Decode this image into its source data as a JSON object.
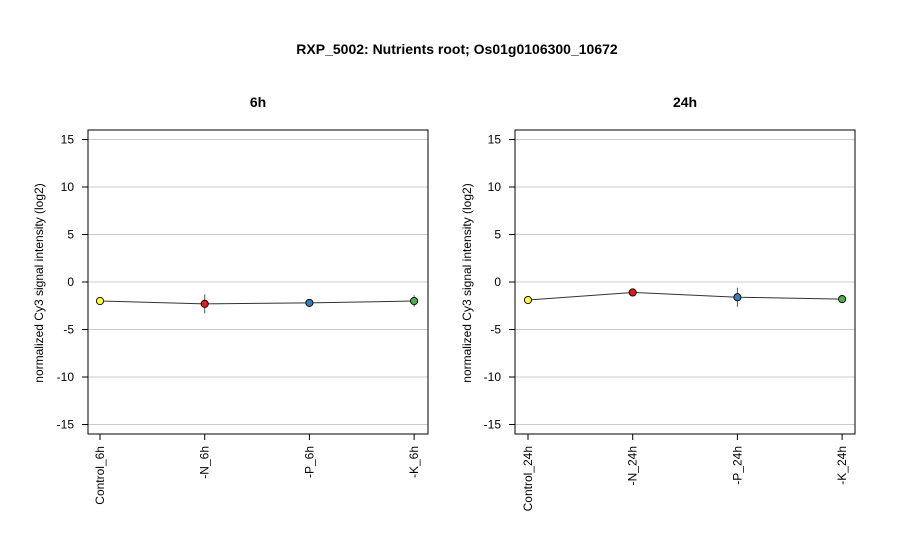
{
  "figure_title": "RXP_5002: Nutrients root; Os01g0106300_10672",
  "colors": {
    "control": "#ffff33",
    "N": "#e41a1c",
    "P": "#377eb8",
    "K": "#4daf4a",
    "line": "#333333",
    "grid": "#cccccc"
  },
  "chart_data": [
    {
      "type": "line",
      "title": "6h",
      "ylabel": "normalized Cy3 signal intensity (log2)",
      "ylim": [
        -16,
        16
      ],
      "yticks": [
        -15,
        -10,
        -5,
        0,
        5,
        10,
        15
      ],
      "grid": true,
      "categories": [
        "Control_6h",
        "-N_6h",
        "-P_6h",
        "-K_6h"
      ],
      "values": [
        -2.0,
        -2.3,
        -2.2,
        -2.0
      ],
      "errors": [
        0,
        1.0,
        0,
        0.6
      ],
      "point_colors": [
        "#ffff33",
        "#e41a1c",
        "#377eb8",
        "#4daf4a"
      ]
    },
    {
      "type": "line",
      "title": "24h",
      "ylabel": "normalized Cy3 signal intensity (log2)",
      "ylim": [
        -16,
        16
      ],
      "yticks": [
        -15,
        -10,
        -5,
        0,
        5,
        10,
        15
      ],
      "grid": true,
      "categories": [
        "Control_24h",
        "-N_24h",
        "-P_24h",
        "-K_24h"
      ],
      "values": [
        -1.9,
        -1.1,
        -1.6,
        -1.8
      ],
      "errors": [
        0,
        0.3,
        1.0,
        0
      ],
      "point_colors": [
        "#ffff33",
        "#e41a1c",
        "#377eb8",
        "#4daf4a"
      ]
    }
  ]
}
